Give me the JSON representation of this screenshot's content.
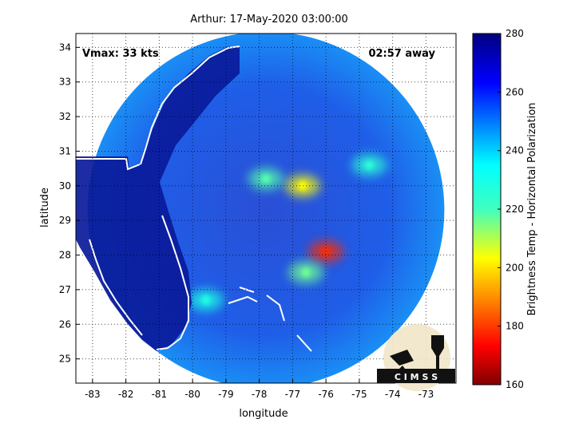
{
  "chart_data": {
    "type": "heatmap",
    "title": "Arthur: 17-May-2020 03:00:00",
    "xlabel": "longitude",
    "ylabel": "latitude",
    "xlim": [
      -83.5,
      -72.1
    ],
    "ylim": [
      24.3,
      34.4
    ],
    "xticks": [
      -83,
      -82,
      -81,
      -80,
      -79,
      -78,
      -77,
      -76,
      -75,
      -74,
      -73
    ],
    "yticks": [
      25,
      26,
      27,
      28,
      29,
      30,
      31,
      32,
      33,
      34
    ],
    "grid": true,
    "vmax_label": "Vmax: 33 kts",
    "time_label": "02:57 away",
    "colorbar": {
      "label": "Brightness Temp - Horizontal Polarization",
      "min": 160,
      "max": 280,
      "ticks": [
        160,
        180,
        200,
        220,
        240,
        260,
        280
      ],
      "colormap": "jet"
    },
    "swath": {
      "center_lon": -77.8,
      "center_lat": 29.3,
      "radius_deg": 5.35
    },
    "features": [
      {
        "name": "eye-band-core",
        "lon": -76.7,
        "lat": 30.0,
        "tb": 205
      },
      {
        "name": "rainband-cold-core",
        "lon": -76.0,
        "lat": 28.1,
        "tb": 180
      },
      {
        "name": "rainband-south",
        "lon": -76.6,
        "lat": 27.5,
        "tb": 222
      },
      {
        "name": "outer-band-west",
        "lon": -79.6,
        "lat": 26.7,
        "tb": 232
      },
      {
        "name": "band-north",
        "lon": -77.8,
        "lat": 30.2,
        "tb": 225
      },
      {
        "name": "east-cell",
        "lon": -74.7,
        "lat": 30.6,
        "tb": 230
      }
    ],
    "logo": {
      "text": "C I M S S"
    }
  }
}
